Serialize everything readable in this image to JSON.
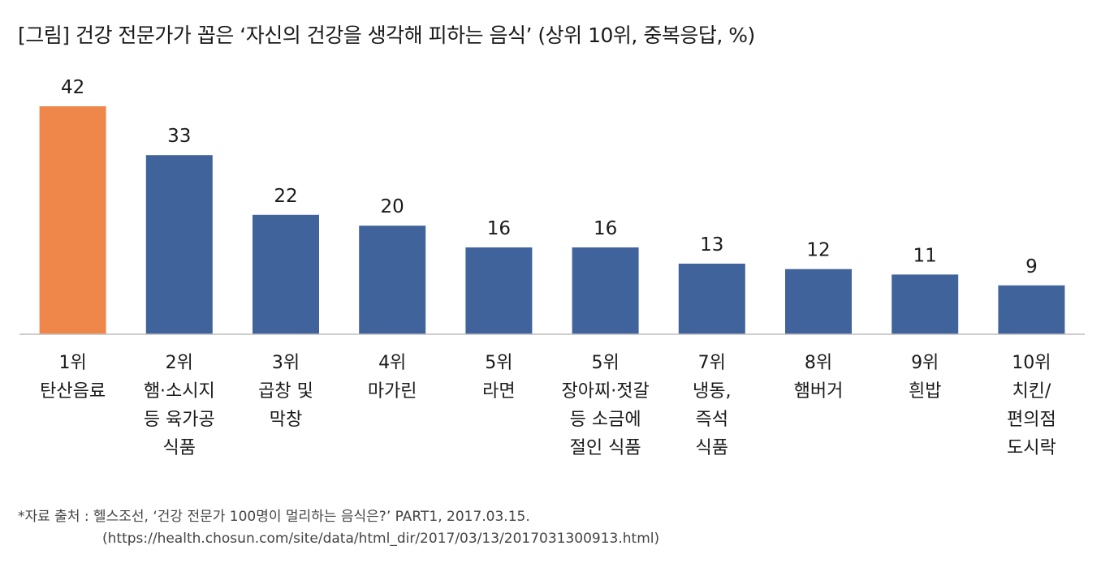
{
  "title": "[그림] 건강 전문가가 꼽은 ‘자신의 건강을 생각해 피하는 음식’ (상위 10위, 중복응답, %)",
  "source_line1": "*자료 출처 : 헬스조선, ‘건강 전문가 100명이 멀리하는 음식은?’ PART1, 2017.03.15.",
  "source_line2": "(https://health.chosun.com/site/data/html_dir/2017/03/13/2017031300913.html)",
  "colors": {
    "highlight": "#F0874A",
    "default": "#40639C",
    "axis": "#bfbfbf"
  },
  "chart_data": {
    "type": "bar",
    "categories": [
      [
        "1위",
        "탄산음료"
      ],
      [
        "2위",
        "햄·소시지",
        "등 육가공",
        "식품"
      ],
      [
        "3위",
        "곱창 및",
        "막창"
      ],
      [
        "4위",
        "마가린"
      ],
      [
        "5위",
        "라면"
      ],
      [
        "5위",
        "장아찌·젓갈",
        "등 소금에",
        "절인 식품"
      ],
      [
        "7위",
        "냉동,",
        "즉석",
        "식품"
      ],
      [
        "8위",
        "햄버거"
      ],
      [
        "9위",
        "흰밥"
      ],
      [
        "10위",
        "치킨/",
        "편의점",
        "도시락"
      ]
    ],
    "values": [
      42,
      33,
      22,
      20,
      16,
      16,
      13,
      12,
      11,
      9
    ],
    "highlight_index": 0,
    "ylim": [
      0,
      45
    ],
    "grid": false,
    "legend": "none"
  }
}
